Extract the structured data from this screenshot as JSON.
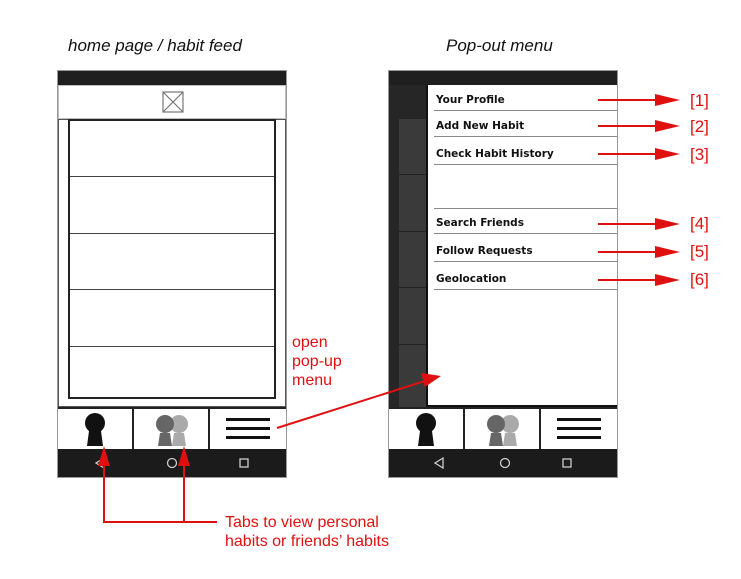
{
  "left_caption": "home page / habit feed",
  "right_caption": "Pop-out menu",
  "menu": {
    "items": [
      {
        "label": "Your Profile",
        "ref": "[1]"
      },
      {
        "label": "Add New Habit",
        "ref": "[2]"
      },
      {
        "label": "Check Habit History",
        "ref": "[3]"
      },
      {
        "label": "Search Friends",
        "ref": "[4]"
      },
      {
        "label": "Follow Requests",
        "ref": "[5]"
      },
      {
        "label": "Geolocation",
        "ref": "[6]"
      }
    ]
  },
  "annotations": {
    "open_menu_line1": "open",
    "open_menu_line2": "pop-up",
    "open_menu_line3": "menu",
    "tabs_line1": "Tabs to view personal",
    "tabs_line2": "habits or friends’ habits"
  },
  "tabs": [
    "person-icon",
    "friends-icon",
    "hamburger-menu-icon"
  ],
  "nav_icons": [
    "back-icon",
    "home-icon",
    "recent-apps-icon"
  ],
  "colors": {
    "annotation": "#e01010",
    "dark": "#1f1f1f"
  }
}
